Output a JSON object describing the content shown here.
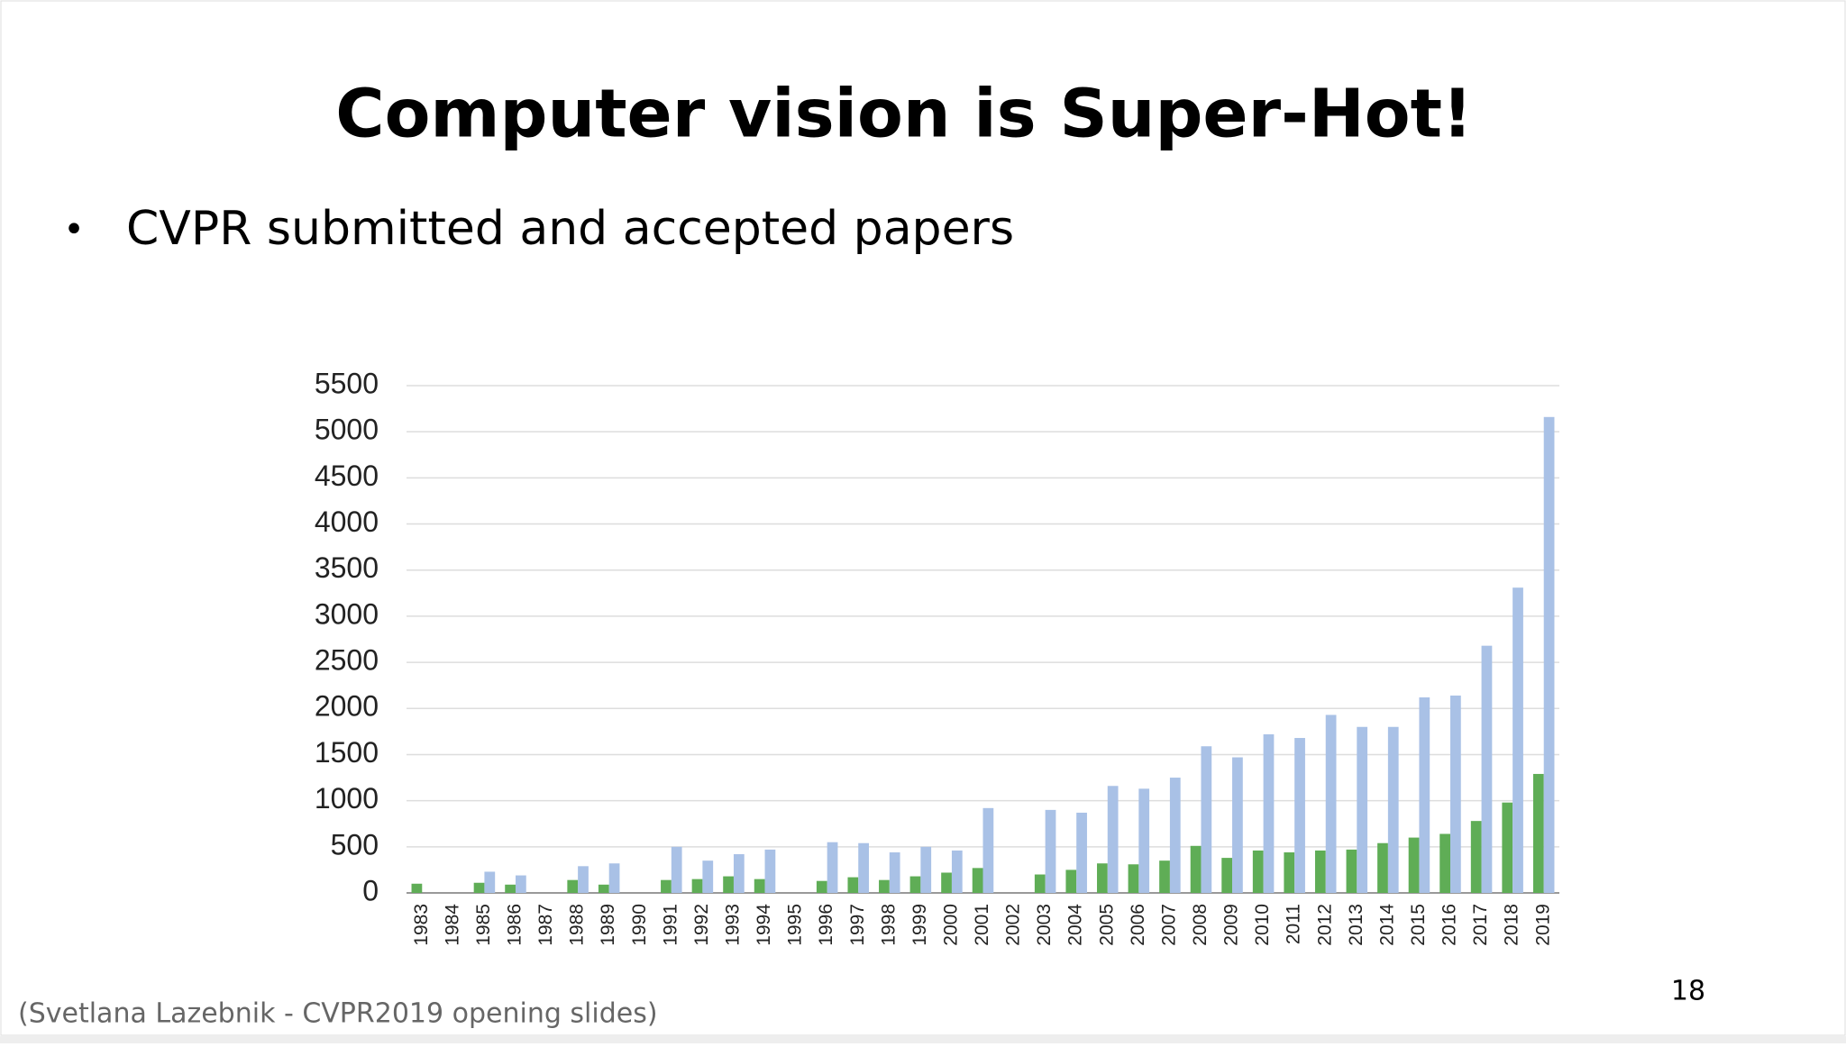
{
  "slide": {
    "title": "Computer vision is Super-Hot!",
    "bullet": "CVPR submitted and accepted papers",
    "source": "(Svetlana Lazebnik - CVPR2019 opening slides)",
    "page_number": "18"
  },
  "chart_data": {
    "type": "bar",
    "categories": [
      "1983",
      "1984",
      "1985",
      "1986",
      "1987",
      "1988",
      "1989",
      "1990",
      "1991",
      "1992",
      "1993",
      "1994",
      "1995",
      "1996",
      "1997",
      "1998",
      "1999",
      "2000",
      "2001",
      "2002",
      "2003",
      "2004",
      "2005",
      "2006",
      "2007",
      "2008",
      "2009",
      "2010",
      "2011",
      "2012",
      "2013",
      "2014",
      "2015",
      "2016",
      "2017",
      "2018",
      "2019"
    ],
    "series": [
      {
        "color": "#5fad56",
        "values": [
          100,
          null,
          110,
          90,
          null,
          140,
          90,
          null,
          140,
          150,
          180,
          150,
          null,
          130,
          170,
          140,
          180,
          220,
          270,
          null,
          200,
          250,
          320,
          310,
          350,
          510,
          380,
          460,
          440,
          460,
          470,
          540,
          600,
          640,
          780,
          980,
          1290
        ]
      },
      {
        "color": "#a9c1e6",
        "values": [
          null,
          null,
          230,
          190,
          null,
          290,
          320,
          null,
          500,
          350,
          420,
          470,
          null,
          550,
          540,
          440,
          500,
          460,
          920,
          null,
          900,
          870,
          1160,
          1130,
          1250,
          1590,
          1470,
          1720,
          1680,
          1930,
          1800,
          1800,
          2120,
          2140,
          2680,
          3310,
          5160
        ]
      }
    ],
    "ylim": [
      0,
      5500
    ],
    "yticks": [
      0,
      500,
      1000,
      1500,
      2000,
      2500,
      3000,
      3500,
      4000,
      4500,
      5000,
      5500
    ],
    "grid": true
  }
}
